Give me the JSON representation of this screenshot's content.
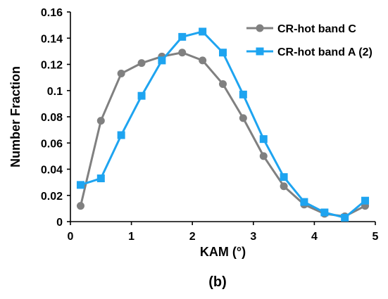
{
  "chart_data": {
    "type": "line",
    "xlabel": "KAM (°)",
    "ylabel": "Number Fraction",
    "panel_label": "(b)",
    "xlim": [
      0,
      5
    ],
    "ylim": [
      0,
      0.16
    ],
    "x_ticks": [
      0,
      1,
      2,
      3,
      4,
      5
    ],
    "y_ticks": [
      0,
      0.02,
      0.04,
      0.06,
      0.08,
      0.1,
      0.12,
      0.14,
      0.16
    ],
    "grid": false,
    "legend_position": "top-right",
    "series": [
      {
        "name": "CR-hot band C",
        "color": "#808080",
        "marker": "circle",
        "x": [
          0.167,
          0.5,
          0.833,
          1.167,
          1.5,
          1.833,
          2.167,
          2.5,
          2.833,
          3.167,
          3.5,
          3.833,
          4.167,
          4.5,
          4.833
        ],
        "values": [
          0.012,
          0.077,
          0.113,
          0.121,
          0.126,
          0.129,
          0.123,
          0.105,
          0.079,
          0.05,
          0.027,
          0.013,
          0.006,
          0.004,
          0.012
        ]
      },
      {
        "name": "CR-hot band A (2)",
        "color": "#1ea4f0",
        "marker": "square",
        "x": [
          0.167,
          0.5,
          0.833,
          1.167,
          1.5,
          1.833,
          2.167,
          2.5,
          2.833,
          3.167,
          3.5,
          3.833,
          4.167,
          4.5,
          4.833
        ],
        "values": [
          0.028,
          0.033,
          0.066,
          0.096,
          0.123,
          0.141,
          0.145,
          0.129,
          0.097,
          0.063,
          0.034,
          0.015,
          0.007,
          0.003,
          0.016
        ]
      }
    ]
  }
}
